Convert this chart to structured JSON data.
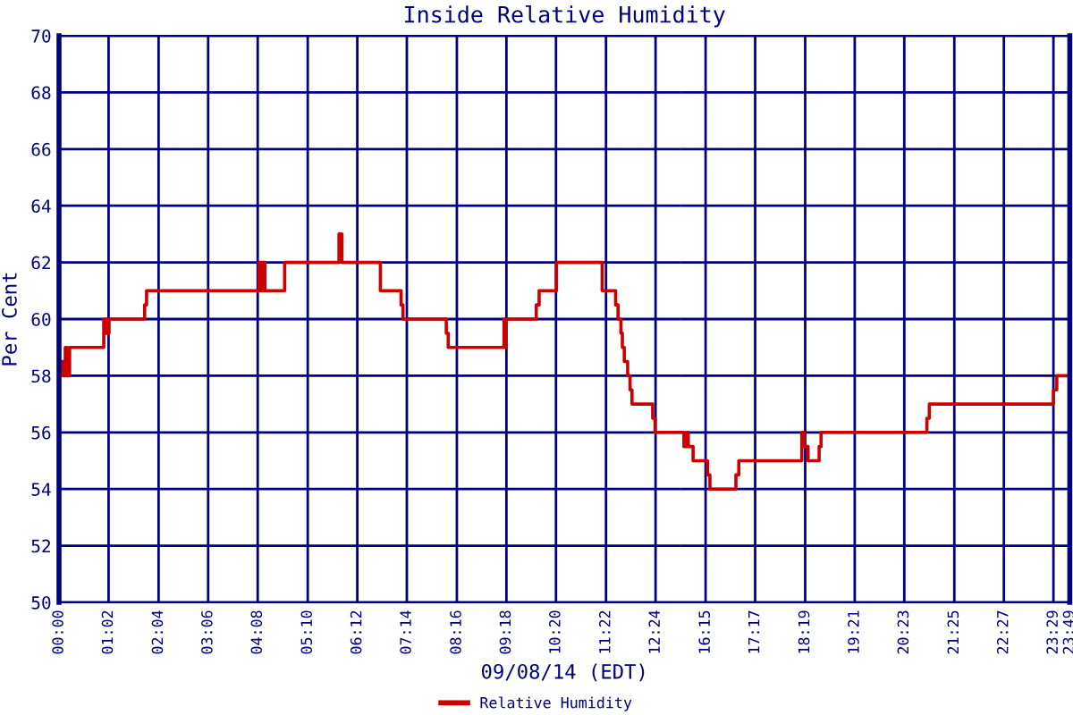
{
  "chart_data": [
    {
      "type": "step",
      "title": "Inside Relative Humidity",
      "xlabel": "09/08/14 (EDT)",
      "ylabel": "Per Cent",
      "series": [
        {
          "name": "Relative Humidity",
          "color": "#cc0000",
          "x": [
            0,
            0.05,
            0.09,
            0.13,
            0.17,
            0.22,
            0.93,
            0.98,
            1.04,
            1.78,
            1.82,
            4.16,
            4.21,
            4.24,
            4.28,
            4.69,
            5.82,
            5.88,
            6.68,
            7.11,
            7.15,
            8.05,
            8.09,
            9.25,
            9.27,
            9.29,
            9.92,
            9.98,
            10.34,
            11.29,
            11.57,
            11.62,
            11.68,
            11.71,
            11.75,
            11.82,
            11.87,
            11.91,
            12.34,
            12.39,
            12.92
          ],
          "values": [
            58,
            58.5,
            58,
            59,
            58,
            59,
            60,
            59.5,
            60,
            60.5,
            61,
            62,
            61,
            62,
            61,
            62,
            63,
            62,
            61,
            60.5,
            60,
            59.5,
            59,
            60,
            59,
            60,
            60.5,
            61,
            62,
            61,
            60.5,
            60,
            59.5,
            59,
            58.5,
            58,
            57.5,
            57,
            56.5,
            56,
            56
          ]
        }
      ],
      "xlim": [
        0,
        12.92
      ],
      "xticks": [
        {
          "value": 0,
          "label": "00:00"
        },
        {
          "value": 1.03,
          "label": "01:02"
        },
        {
          "value": 2.07,
          "label": "02:04"
        },
        {
          "value": 3.1,
          "label": "03:06"
        },
        {
          "value": 4.13,
          "label": "04:08"
        },
        {
          "value": 5.17,
          "label": "05:10"
        },
        {
          "value": 6.2,
          "label": "06:12"
        },
        {
          "value": 7.23,
          "label": "07:14"
        },
        {
          "value": 8.27,
          "label": "08:16"
        },
        {
          "value": 9.3,
          "label": "09:18"
        },
        {
          "value": 10.33,
          "label": "10:20"
        },
        {
          "value": 11.37,
          "label": "11:22"
        },
        {
          "value": 12.4,
          "label": "12:24"
        }
      ],
      "ylim": [
        50,
        70
      ],
      "yticks": [
        50,
        52,
        54,
        56,
        58,
        60,
        62,
        64,
        66,
        68,
        70
      ],
      "grid": true,
      "legend": "bottom"
    },
    {
      "type": "step",
      "series": [
        {
          "color": "#cc0000",
          "x": [
            15.73,
            15.8,
            15.86,
            15.89,
            15.99,
            16.29,
            16.34,
            16.88,
            16.94,
            18.25,
            18.3,
            18.38,
            18.61,
            18.65,
            20.85,
            20.9,
            23.48,
            23.55,
            23.82
          ],
          "values": [
            56,
            55.5,
            56,
            55.5,
            55,
            54.5,
            54,
            54.5,
            55,
            56,
            55.5,
            55,
            55.5,
            56,
            56.5,
            57,
            57.5,
            58,
            58
          ]
        }
      ],
      "xlim": [
        15.73,
        23.82
      ],
      "xticks": [
        {
          "value": 16.25,
          "label": "16:15"
        },
        {
          "value": 17.28,
          "label": "17:17"
        },
        {
          "value": 18.32,
          "label": "18:19"
        },
        {
          "value": 19.35,
          "label": "19:21"
        },
        {
          "value": 20.38,
          "label": "20:23"
        },
        {
          "value": 21.42,
          "label": "21:25"
        },
        {
          "value": 22.45,
          "label": "22:27"
        },
        {
          "value": 23.48,
          "label": "23:29"
        },
        {
          "value": 23.82,
          "label": "23:49"
        }
      ],
      "ylim": [
        50,
        70
      ],
      "yticks": [
        50,
        52,
        54,
        56,
        58,
        60,
        62,
        64,
        66,
        68,
        70
      ],
      "grid": true,
      "tick_labels": "x"
    }
  ]
}
